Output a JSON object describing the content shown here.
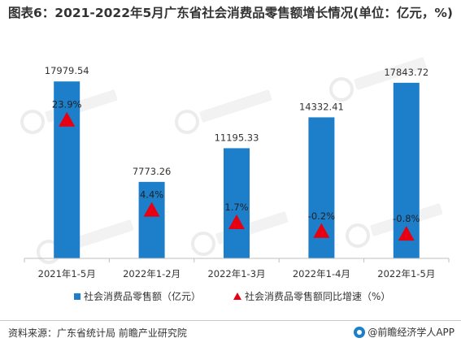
{
  "title": "图表6：2021-2022年5月广东省社会消费品零售额增长情况(单位：亿元，%)",
  "chart_data": {
    "type": "bar",
    "categories": [
      "2021年1-5月",
      "2022年1-2月",
      "2022年1-3月",
      "2022年1-4月",
      "2022年1-5月"
    ],
    "series": [
      {
        "name": "社会消费品零售额（亿元）",
        "type": "bar",
        "color": "#1d7ec9",
        "values": [
          17979.54,
          7773.26,
          11195.33,
          14332.41,
          17843.72
        ],
        "labels": [
          "17979.54",
          "7773.26",
          "11195.33",
          "14332.41",
          "17843.72"
        ]
      },
      {
        "name": "社会消费品零售额同比增速（%）",
        "type": "marker",
        "marker": "triangle",
        "color": "#e60012",
        "values": [
          23.9,
          4.4,
          1.7,
          -0.2,
          -0.8
        ],
        "labels": [
          "23.9%",
          "4.4%",
          "1.7%",
          "-0.2%",
          "-0.8%"
        ]
      }
    ],
    "legend_position": "bottom",
    "grid": false
  },
  "source": "资料来源：广东省统计局 前瞻产业研究院",
  "brand": "@前瞻经济学人APP"
}
